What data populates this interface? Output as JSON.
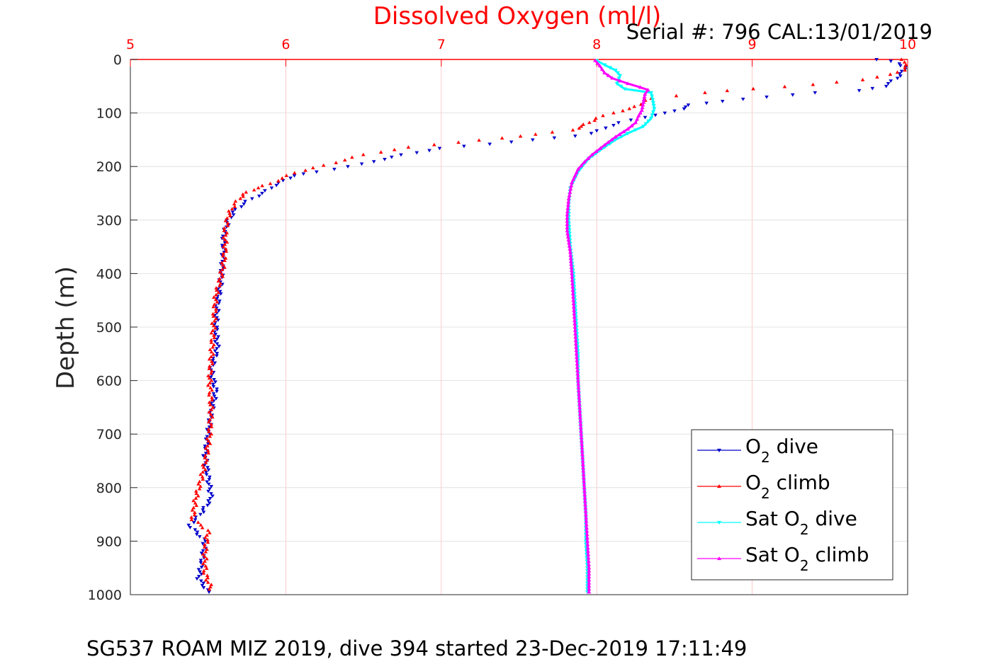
{
  "chart_data": {
    "type": "scatter",
    "title": "Dissolved Oxygen (ml/l)",
    "annotation": "Serial #: 796  CAL:13/01/2019",
    "footer": "SG537 ROAM MIZ 2019, dive 394 started 23-Dec-2019 17:11:49",
    "ylabel": "Depth (m)",
    "xlabel": "",
    "xlim": [
      5,
      10
    ],
    "ylim": [
      0,
      1000
    ],
    "y_reversed": true,
    "x_axis_position": "top",
    "x_ticks": [
      "5",
      "6",
      "7",
      "8",
      "9",
      "10"
    ],
    "y_ticks": [
      "0",
      "100",
      "200",
      "300",
      "400",
      "500",
      "600",
      "700",
      "800",
      "900",
      "1000"
    ],
    "grid": true,
    "legend_position": "bottom-right",
    "series": [
      {
        "name": "O2 dive",
        "legend": {
          "main": "O",
          "sub": "2",
          "rest": " dive"
        },
        "color": "#0000cc",
        "marker": "triangle-down",
        "style": "markers",
        "points": [
          [
            9.8,
            0
          ],
          [
            9.88,
            3
          ],
          [
            9.95,
            8
          ],
          [
            9.98,
            15
          ],
          [
            9.97,
            22
          ],
          [
            9.93,
            35
          ],
          [
            9.85,
            50
          ],
          [
            9.7,
            58
          ],
          [
            9.4,
            62
          ],
          [
            9.1,
            70
          ],
          [
            8.8,
            78
          ],
          [
            8.6,
            85
          ],
          [
            8.55,
            92
          ],
          [
            8.45,
            100
          ],
          [
            8.3,
            108
          ],
          [
            8.15,
            118
          ],
          [
            8.05,
            128
          ],
          [
            7.97,
            138
          ],
          [
            7.85,
            143
          ],
          [
            7.6,
            150
          ],
          [
            7.3,
            158
          ],
          [
            7.0,
            166
          ],
          [
            6.75,
            178
          ],
          [
            6.5,
            195
          ],
          [
            6.2,
            210
          ],
          [
            6.05,
            217
          ],
          [
            5.93,
            235
          ],
          [
            5.85,
            250
          ],
          [
            5.75,
            265
          ],
          [
            5.68,
            280
          ],
          [
            5.63,
            300
          ],
          [
            5.6,
            330
          ],
          [
            5.6,
            360
          ],
          [
            5.59,
            390
          ],
          [
            5.58,
            420
          ],
          [
            5.56,
            460
          ],
          [
            5.55,
            500
          ],
          [
            5.56,
            540
          ],
          [
            5.52,
            580
          ],
          [
            5.55,
            620
          ],
          [
            5.52,
            660
          ],
          [
            5.5,
            700
          ],
          [
            5.48,
            740
          ],
          [
            5.5,
            780
          ],
          [
            5.52,
            820
          ],
          [
            5.45,
            850
          ],
          [
            5.38,
            870
          ],
          [
            5.48,
            900
          ],
          [
            5.46,
            940
          ],
          [
            5.44,
            970
          ],
          [
            5.5,
            995
          ]
        ]
      },
      {
        "name": "O2 climb",
        "legend": {
          "main": "O",
          "sub": "2",
          "rest": " climb"
        },
        "color": "#ff0000",
        "marker": "triangle-up",
        "style": "markers",
        "points": [
          [
            9.95,
            0
          ],
          [
            10.0,
            10
          ],
          [
            9.97,
            20
          ],
          [
            9.9,
            28
          ],
          [
            9.7,
            38
          ],
          [
            9.4,
            47
          ],
          [
            9.0,
            55
          ],
          [
            8.7,
            62
          ],
          [
            8.5,
            68
          ],
          [
            8.35,
            73
          ],
          [
            8.3,
            80
          ],
          [
            8.22,
            92
          ],
          [
            8.1,
            100
          ],
          [
            8.0,
            110
          ],
          [
            7.95,
            118
          ],
          [
            7.9,
            125
          ],
          [
            7.85,
            132
          ],
          [
            7.6,
            140
          ],
          [
            7.4,
            147
          ],
          [
            7.1,
            155
          ],
          [
            6.8,
            164
          ],
          [
            6.5,
            178
          ],
          [
            6.25,
            198
          ],
          [
            6.05,
            212
          ],
          [
            5.98,
            222
          ],
          [
            5.9,
            232
          ],
          [
            5.82,
            240
          ],
          [
            5.75,
            248
          ],
          [
            5.7,
            260
          ],
          [
            5.66,
            275
          ],
          [
            5.63,
            292
          ],
          [
            5.61,
            320
          ],
          [
            5.61,
            350
          ],
          [
            5.6,
            380
          ],
          [
            5.58,
            410
          ],
          [
            5.55,
            440
          ],
          [
            5.54,
            480
          ],
          [
            5.53,
            520
          ],
          [
            5.52,
            560
          ],
          [
            5.51,
            600
          ],
          [
            5.52,
            650
          ],
          [
            5.51,
            700
          ],
          [
            5.49,
            740
          ],
          [
            5.46,
            780
          ],
          [
            5.42,
            820
          ],
          [
            5.4,
            860
          ],
          [
            5.5,
            880
          ],
          [
            5.48,
            920
          ],
          [
            5.48,
            960
          ],
          [
            5.52,
            990
          ]
        ]
      },
      {
        "name": "Sat O2 dive",
        "legend": {
          "main": "Sat O",
          "sub": "2",
          "rest": " dive"
        },
        "color": "#00ffff",
        "marker": "triangle-down",
        "style": "line",
        "points": [
          [
            8.0,
            2
          ],
          [
            8.05,
            10
          ],
          [
            8.12,
            20
          ],
          [
            8.15,
            30
          ],
          [
            8.13,
            45
          ],
          [
            8.18,
            55
          ],
          [
            8.35,
            62
          ],
          [
            8.36,
            75
          ],
          [
            8.37,
            92
          ],
          [
            8.35,
            110
          ],
          [
            8.3,
            125
          ],
          [
            8.2,
            138
          ],
          [
            8.12,
            150
          ],
          [
            8.02,
            170
          ],
          [
            7.95,
            185
          ],
          [
            7.92,
            195
          ],
          [
            7.88,
            210
          ],
          [
            7.83,
            240
          ],
          [
            7.82,
            270
          ],
          [
            7.82,
            300
          ],
          [
            7.83,
            350
          ],
          [
            7.85,
            400
          ],
          [
            7.86,
            450
          ],
          [
            7.87,
            500
          ],
          [
            7.88,
            550
          ],
          [
            7.88,
            600
          ],
          [
            7.89,
            650
          ],
          [
            7.9,
            700
          ],
          [
            7.91,
            750
          ],
          [
            7.92,
            800
          ],
          [
            7.93,
            850
          ],
          [
            7.93,
            900
          ],
          [
            7.94,
            950
          ],
          [
            7.94,
            995
          ]
        ]
      },
      {
        "name": "Sat O2 climb",
        "legend": {
          "main": "Sat O",
          "sub": "2",
          "rest": " climb"
        },
        "color": "#ff00ff",
        "marker": "triangle-up",
        "style": "line",
        "points": [
          [
            7.99,
            2
          ],
          [
            8.02,
            12
          ],
          [
            8.05,
            25
          ],
          [
            8.1,
            35
          ],
          [
            8.2,
            45
          ],
          [
            8.28,
            52
          ],
          [
            8.33,
            57
          ],
          [
            8.31,
            65
          ],
          [
            8.3,
            80
          ],
          [
            8.29,
            95
          ],
          [
            8.27,
            105
          ],
          [
            8.25,
            118
          ],
          [
            8.2,
            130
          ],
          [
            8.12,
            145
          ],
          [
            8.05,
            160
          ],
          [
            7.97,
            178
          ],
          [
            7.92,
            192
          ],
          [
            7.88,
            205
          ],
          [
            7.84,
            230
          ],
          [
            7.82,
            260
          ],
          [
            7.81,
            290
          ],
          [
            7.81,
            320
          ],
          [
            7.83,
            360
          ],
          [
            7.84,
            400
          ],
          [
            7.85,
            450
          ],
          [
            7.86,
            500
          ],
          [
            7.87,
            550
          ],
          [
            7.88,
            600
          ],
          [
            7.89,
            650
          ],
          [
            7.9,
            700
          ],
          [
            7.91,
            750
          ],
          [
            7.92,
            800
          ],
          [
            7.93,
            850
          ],
          [
            7.94,
            900
          ],
          [
            7.95,
            950
          ],
          [
            7.95,
            995
          ]
        ]
      }
    ]
  }
}
